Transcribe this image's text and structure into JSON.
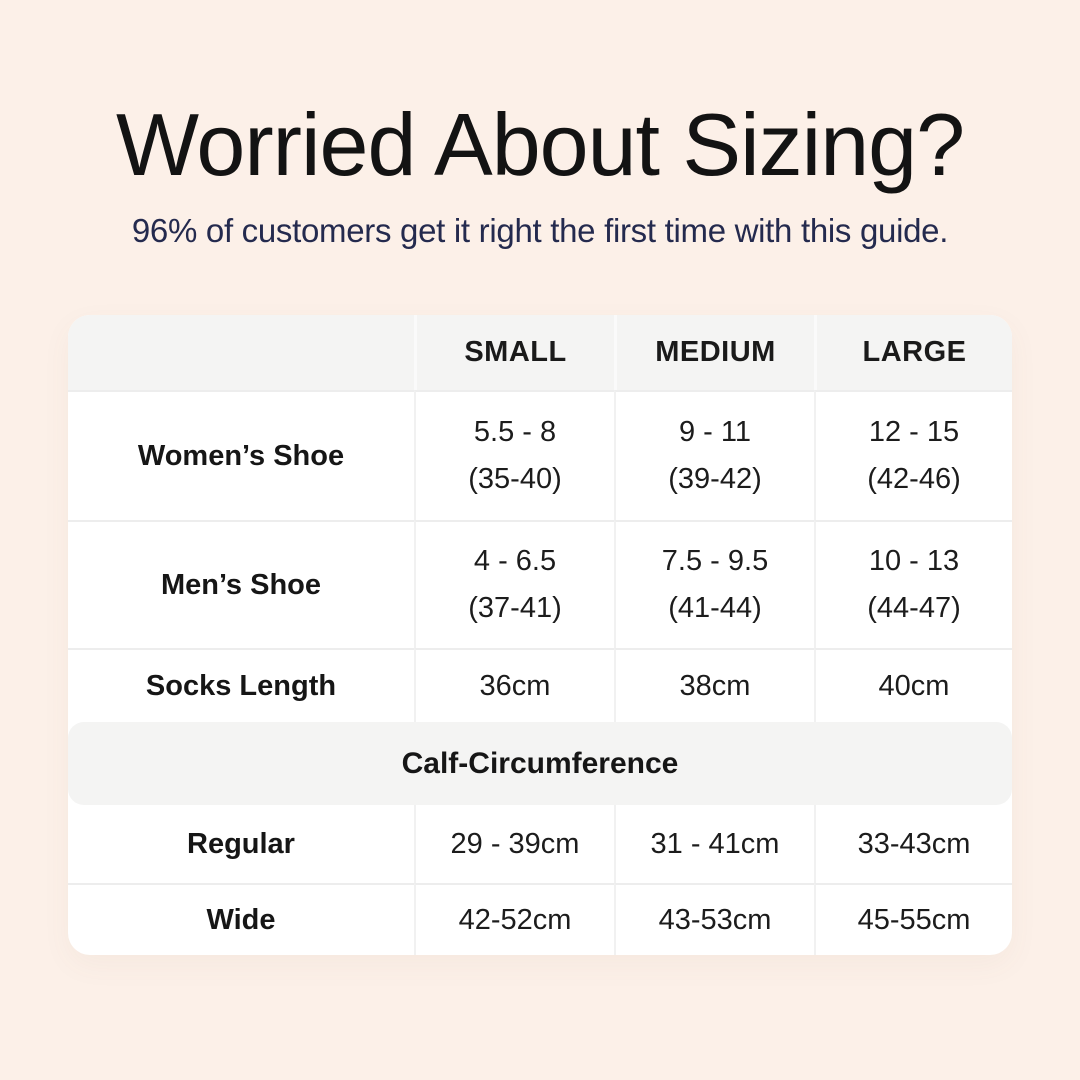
{
  "card": {
    "title": "Worried About Sizing?",
    "subtitle": "96% of customers get it right the first time with this guide.",
    "background_color": "#fcf0e8",
    "title_color": "#131313",
    "subtitle_color": "#242a4e",
    "header_band_color": "#f4f4f3"
  },
  "table": {
    "column_headers": [
      "SMALL",
      "MEDIUM",
      "LARGE"
    ],
    "shoe_rows": [
      {
        "label": "Women’s Shoe",
        "small": [
          "5.5 - 8",
          "(35-40)"
        ],
        "medium": [
          "9 - 11",
          "(39-42)"
        ],
        "large": [
          "12 - 15",
          "(42-46)"
        ]
      },
      {
        "label": "Men’s Shoe",
        "small": [
          "4 - 6.5",
          "(37-41)"
        ],
        "medium": [
          "7.5 - 9.5",
          "(41-44)"
        ],
        "large": [
          "10 - 13",
          "(44-47)"
        ]
      },
      {
        "label": "Socks Length",
        "small": [
          "36cm"
        ],
        "medium": [
          "38cm"
        ],
        "large": [
          "40cm"
        ]
      }
    ],
    "section_header": "Calf-Circumference",
    "calf_rows": [
      {
        "label": "Regular",
        "small": [
          "29 - 39cm"
        ],
        "medium": [
          "31 - 41cm"
        ],
        "large": [
          "33-43cm"
        ]
      },
      {
        "label": "Wide",
        "small": [
          "42-52cm"
        ],
        "medium": [
          "43-53cm"
        ],
        "large": [
          "45-55cm"
        ]
      }
    ]
  }
}
